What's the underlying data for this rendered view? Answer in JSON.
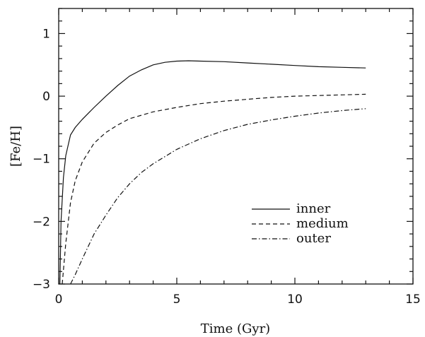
{
  "chart_data": {
    "type": "line",
    "title": "",
    "xlabel": "Time (Gyr)",
    "ylabel": "[Fe/H]",
    "xlim": [
      0,
      15
    ],
    "ylim": [
      -3,
      1.4
    ],
    "xticks": [
      0,
      5,
      10,
      15
    ],
    "yticks": [
      -3,
      -2,
      -1,
      0,
      1
    ],
    "xtick_labels": [
      "0",
      "5",
      "10",
      "15"
    ],
    "ytick_labels": [
      "−3",
      "−2",
      "−1",
      "0",
      "1"
    ],
    "grid": false,
    "legend_position": "lower-right",
    "series": [
      {
        "name": "inner",
        "style": "solid",
        "x": [
          0.05,
          0.1,
          0.2,
          0.3,
          0.5,
          0.7,
          1.0,
          1.5,
          2.0,
          2.5,
          3.0,
          3.5,
          4.0,
          4.5,
          5.0,
          5.5,
          6.0,
          7.0,
          8.0,
          9.0,
          10.0,
          11.0,
          12.0,
          13.0
        ],
        "y": [
          -3.0,
          -2.0,
          -1.3,
          -0.95,
          -0.62,
          -0.5,
          -0.37,
          -0.18,
          0.0,
          0.17,
          0.32,
          0.42,
          0.5,
          0.54,
          0.56,
          0.565,
          0.56,
          0.55,
          0.53,
          0.51,
          0.49,
          0.47,
          0.46,
          0.45
        ]
      },
      {
        "name": "medium",
        "style": "dashed",
        "x": [
          0.15,
          0.3,
          0.5,
          0.7,
          1.0,
          1.5,
          2.0,
          2.5,
          3.0,
          4.0,
          5.0,
          6.0,
          7.0,
          8.0,
          9.0,
          10.0,
          11.0,
          12.0,
          13.0
        ],
        "y": [
          -3.0,
          -2.35,
          -1.7,
          -1.35,
          -1.05,
          -0.75,
          -0.58,
          -0.46,
          -0.36,
          -0.25,
          -0.18,
          -0.12,
          -0.08,
          -0.05,
          -0.02,
          0.0,
          0.01,
          0.02,
          0.03
        ]
      },
      {
        "name": "outer",
        "style": "dash-dot",
        "x": [
          0.5,
          0.7,
          1.0,
          1.5,
          2.0,
          2.5,
          3.0,
          3.5,
          4.0,
          5.0,
          6.0,
          7.0,
          8.0,
          9.0,
          10.0,
          11.0,
          12.0,
          13.0
        ],
        "y": [
          -3.0,
          -2.85,
          -2.6,
          -2.2,
          -1.9,
          -1.62,
          -1.4,
          -1.22,
          -1.08,
          -0.85,
          -0.68,
          -0.55,
          -0.45,
          -0.38,
          -0.32,
          -0.27,
          -0.23,
          -0.2
        ]
      }
    ]
  }
}
